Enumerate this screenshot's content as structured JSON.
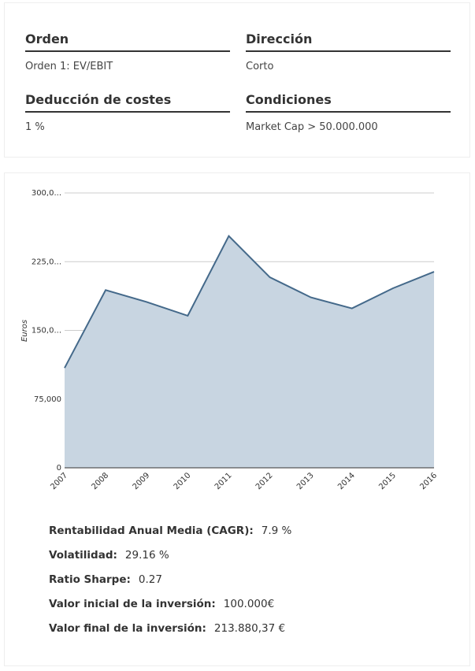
{
  "info": {
    "fields": [
      {
        "label": "Orden",
        "value": "Orden 1: EV/EBIT"
      },
      {
        "label": "Dirección",
        "value": "Corto"
      },
      {
        "label": "Deducción de costes",
        "value": "1 %"
      },
      {
        "label": "Condiciones",
        "value": "Market Cap > 50.000.000"
      }
    ]
  },
  "chart_data": {
    "type": "area",
    "y_label": "Euros",
    "categories": [
      "2007",
      "2008",
      "2009",
      "2010",
      "2011",
      "2012",
      "2013",
      "2014",
      "2015",
      "2016"
    ],
    "values": [
      109000,
      194000,
      181000,
      166000,
      253000,
      208000,
      186000,
      174000,
      196000,
      214000
    ],
    "color": "#44698a",
    "fill": "#c8d5e1",
    "ylim": [
      0,
      300000
    ],
    "yticks": [
      0,
      {
        "value": 75000,
        "label": "75,000"
      },
      {
        "value": 150000,
        "label": "150,0..."
      },
      {
        "value": 225000,
        "label": "225,0..."
      },
      {
        "value": 300000,
        "label": "300,0..."
      }
    ],
    "grid": true
  },
  "stats": [
    {
      "label": "Rentabilidad Anual Media (CAGR):",
      "value": "7.9 %"
    },
    {
      "label": "Volatilidad:",
      "value": "29.16 %"
    },
    {
      "label": "Ratio Sharpe:",
      "value": "0.27"
    },
    {
      "label": "Valor inicial de la inversión:",
      "value": "100.000€"
    },
    {
      "label": "Valor final de la inversión:",
      "value": "213.880,37 €"
    }
  ]
}
